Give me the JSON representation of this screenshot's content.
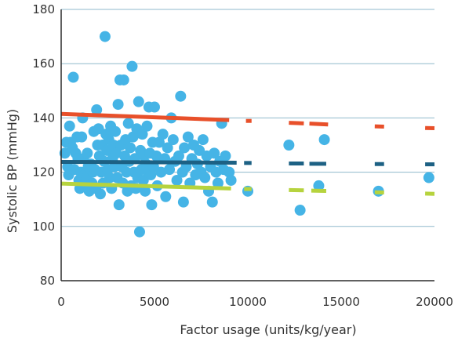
{
  "chart_data": {
    "type": "scatter",
    "title": "",
    "xlabel": "Factor usage (units/kg/year)",
    "ylabel": "Systolic BP (mmHg)",
    "xlim": [
      0,
      20000
    ],
    "ylim": [
      80,
      180
    ],
    "x_ticks": [
      0,
      5000,
      10000,
      15000,
      20000
    ],
    "y_ticks": [
      80,
      100,
      120,
      140,
      160,
      180
    ],
    "grid": "horizontal",
    "legend": "none",
    "colors": {
      "points": "#45b4e6",
      "upper_line": "#e8502a",
      "middle_line": "#1d6184",
      "lower_line": "#b6d33e",
      "grid": "#8fb9cc",
      "axis": "#2c2c2c"
    },
    "points": [
      [
        200,
        127
      ],
      [
        280,
        131
      ],
      [
        350,
        122
      ],
      [
        400,
        119
      ],
      [
        450,
        137
      ],
      [
        500,
        131
      ],
      [
        600,
        129
      ],
      [
        650,
        155
      ],
      [
        700,
        121
      ],
      [
        780,
        127
      ],
      [
        850,
        133
      ],
      [
        900,
        125
      ],
      [
        950,
        117
      ],
      [
        1000,
        114
      ],
      [
        1050,
        120
      ],
      [
        1100,
        133
      ],
      [
        1150,
        140
      ],
      [
        1200,
        125
      ],
      [
        1250,
        119
      ],
      [
        1300,
        116
      ],
      [
        1350,
        118
      ],
      [
        1400,
        127
      ],
      [
        1450,
        122
      ],
      [
        1500,
        113
      ],
      [
        1600,
        123
      ],
      [
        1650,
        116
      ],
      [
        1700,
        120
      ],
      [
        1750,
        135
      ],
      [
        1800,
        121
      ],
      [
        1850,
        114
      ],
      [
        1900,
        143
      ],
      [
        1950,
        130
      ],
      [
        2000,
        136
      ],
      [
        2050,
        126
      ],
      [
        2100,
        112
      ],
      [
        2150,
        120
      ],
      [
        2200,
        130
      ],
      [
        2250,
        116
      ],
      [
        2300,
        124
      ],
      [
        2350,
        170
      ],
      [
        2400,
        134
      ],
      [
        2450,
        128
      ],
      [
        2500,
        121
      ],
      [
        2550,
        132
      ],
      [
        2600,
        118
      ],
      [
        2650,
        137
      ],
      [
        2700,
        114
      ],
      [
        2750,
        125
      ],
      [
        2800,
        130
      ],
      [
        2850,
        122
      ],
      [
        2900,
        135
      ],
      [
        2950,
        127
      ],
      [
        3000,
        118
      ],
      [
        3050,
        145
      ],
      [
        3100,
        108
      ],
      [
        3150,
        154
      ],
      [
        3200,
        130
      ],
      [
        3250,
        122
      ],
      [
        3300,
        116
      ],
      [
        3350,
        154
      ],
      [
        3400,
        126
      ],
      [
        3450,
        132
      ],
      [
        3500,
        120
      ],
      [
        3550,
        113
      ],
      [
        3600,
        138
      ],
      [
        3650,
        124
      ],
      [
        3700,
        129
      ],
      [
        3750,
        115
      ],
      [
        3800,
        159
      ],
      [
        3850,
        133
      ],
      [
        3900,
        120
      ],
      [
        3950,
        125
      ],
      [
        4000,
        114
      ],
      [
        4050,
        136
      ],
      [
        4100,
        118
      ],
      [
        4150,
        146
      ],
      [
        4200,
        98
      ],
      [
        4250,
        128
      ],
      [
        4300,
        121
      ],
      [
        4350,
        134
      ],
      [
        4400,
        117
      ],
      [
        4450,
        126
      ],
      [
        4500,
        113
      ],
      [
        4550,
        123
      ],
      [
        4600,
        137
      ],
      [
        4650,
        120
      ],
      [
        4700,
        144
      ],
      [
        4750,
        127
      ],
      [
        4800,
        119
      ],
      [
        4850,
        108
      ],
      [
        4900,
        131
      ],
      [
        4950,
        122
      ],
      [
        5000,
        144
      ],
      [
        5100,
        126
      ],
      [
        5150,
        115
      ],
      [
        5250,
        131
      ],
      [
        5350,
        120
      ],
      [
        5450,
        134
      ],
      [
        5550,
        125
      ],
      [
        5600,
        111
      ],
      [
        5700,
        129
      ],
      [
        5800,
        121
      ],
      [
        5900,
        140
      ],
      [
        6000,
        132
      ],
      [
        6100,
        124
      ],
      [
        6200,
        117
      ],
      [
        6300,
        126
      ],
      [
        6400,
        148
      ],
      [
        6500,
        120
      ],
      [
        6550,
        109
      ],
      [
        6600,
        129
      ],
      [
        6700,
        122
      ],
      [
        6800,
        133
      ],
      [
        6900,
        116
      ],
      [
        7000,
        125
      ],
      [
        7100,
        130
      ],
      [
        7200,
        119
      ],
      [
        7300,
        123
      ],
      [
        7400,
        128
      ],
      [
        7500,
        120
      ],
      [
        7600,
        132
      ],
      [
        7700,
        118
      ],
      [
        7800,
        126
      ],
      [
        7900,
        113
      ],
      [
        8000,
        122
      ],
      [
        8100,
        109
      ],
      [
        8200,
        127
      ],
      [
        8300,
        120
      ],
      [
        8400,
        116
      ],
      [
        8500,
        124
      ],
      [
        8600,
        138
      ],
      [
        8700,
        121
      ],
      [
        8800,
        126
      ],
      [
        9000,
        120
      ],
      [
        9100,
        117
      ],
      [
        10000,
        113
      ],
      [
        12200,
        130
      ],
      [
        12800,
        106
      ],
      [
        13800,
        115
      ],
      [
        14100,
        132
      ],
      [
        17000,
        113
      ],
      [
        19700,
        118
      ]
    ],
    "lines": [
      {
        "role": "upper",
        "solid": [
          [
            0,
            141.5
          ],
          [
            9000,
            139.2
          ]
        ],
        "dashes": [
          [
            [
              9900,
              10200
            ],
            [
              138.9,
              138.9
            ]
          ],
          [
            [
              12200,
              13000
            ],
            [
              138.2,
              138.0
            ]
          ],
          [
            [
              13300,
              14300
            ],
            [
              137.9,
              137.6
            ]
          ],
          [
            [
              16800,
              17300
            ],
            [
              136.9,
              136.8
            ]
          ],
          [
            [
              19500,
              20000
            ],
            [
              136.3,
              136.2
            ]
          ]
        ]
      },
      {
        "role": "middle",
        "solid": [
          [
            0,
            123.8
          ],
          [
            9400,
            123.5
          ]
        ],
        "dashes": [
          [
            [
              9800,
              10200
            ],
            [
              123.4,
              123.4
            ]
          ],
          [
            [
              12200,
              13000
            ],
            [
              123.2,
              123.2
            ]
          ],
          [
            [
              13300,
              14200
            ],
            [
              123.1,
              123.1
            ]
          ],
          [
            [
              16800,
              17300
            ],
            [
              123.0,
              123.0
            ]
          ],
          [
            [
              19500,
              20000
            ],
            [
              122.9,
              122.9
            ]
          ]
        ]
      },
      {
        "role": "lower",
        "solid": [
          [
            0,
            115.8
          ],
          [
            9100,
            114.0
          ]
        ],
        "dashes": [
          [
            [
              9800,
              10200
            ],
            [
              113.8,
              113.8
            ]
          ],
          [
            [
              12200,
              13000
            ],
            [
              113.4,
              113.3
            ]
          ],
          [
            [
              13400,
              14200
            ],
            [
              113.2,
              113.1
            ]
          ],
          [
            [
              16800,
              17300
            ],
            [
              112.6,
              112.5
            ]
          ],
          [
            [
              19500,
              20000
            ],
            [
              112.1,
              112.0
            ]
          ]
        ]
      }
    ]
  }
}
